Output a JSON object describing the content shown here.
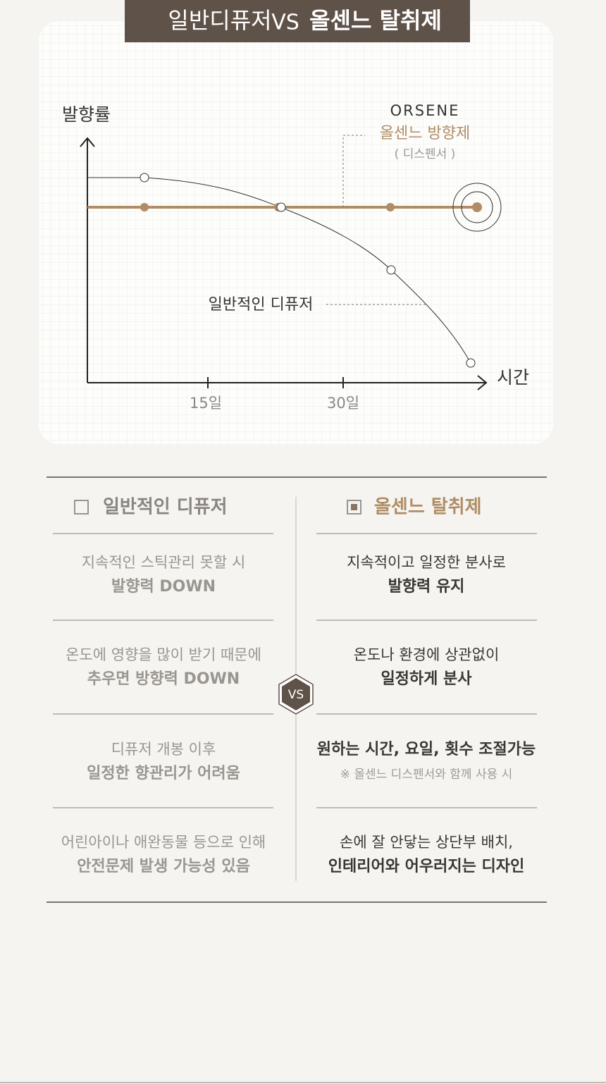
{
  "header": {
    "title_left": "일반디퓨저",
    "vs": "VS",
    "title_right": "올센느 탈취제"
  },
  "graph": {
    "y_label": "발향률",
    "x_label": "시간",
    "x_ticks": [
      "15일",
      "30일"
    ],
    "brand": "ORSENE",
    "orsene_label": "올센느 방향제",
    "orsene_sub": "( 디스펜서 )",
    "diffuser_label": "일반적인 디퓨저"
  },
  "comparison": {
    "left_title": "일반적인 디퓨저",
    "right_title": "올센느 탈취제",
    "vs": "VS",
    "rows": [
      {
        "left": [
          "지속적인 스틱관리 못할 시",
          "발향력 DOWN"
        ],
        "right": [
          "지속적이고 일정한 분사로",
          "발향력 유지"
        ]
      },
      {
        "left": [
          "온도에 영향을 많이 받기 때문에",
          "추우면 방향력 DOWN"
        ],
        "right": [
          "온도나 환경에 상관없이",
          "일정하게 분사"
        ]
      },
      {
        "left": [
          "디퓨저 개봉 이후",
          "일정한 향관리가 어려움"
        ],
        "right": [
          "원하는 시간, 요일, 횟수 조절가능",
          "※ 올센느 디스펜서와 함께 사용 시"
        ]
      },
      {
        "left": [
          "어린아이나 애완동물 등으로 인해",
          "안전문제 발생 가능성 있음"
        ],
        "right": [
          "손에 잘 안닿는 상단부 배치,",
          "인테리어와 어우러지는 디자인"
        ]
      }
    ]
  }
}
